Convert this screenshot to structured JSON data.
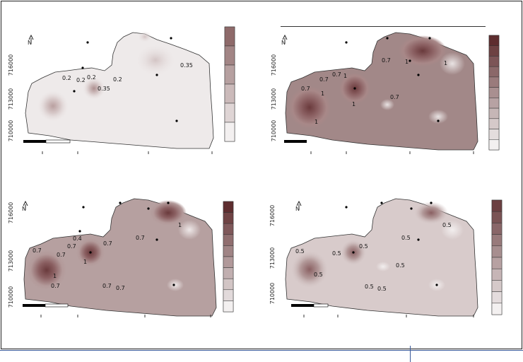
{
  "figure": {
    "panels": [
      {
        "id": "A",
        "northing_ticks": [
          "716000",
          "713000",
          "710000"
        ],
        "contour_labels": [
          "0.2",
          "0.2",
          "0.2",
          "0.35",
          "0.2",
          "0.35"
        ],
        "color_bins": 6,
        "colors": {
          "low": "#f3f0f0",
          "high": "#8e6a6a"
        }
      },
      {
        "id": "B",
        "northing_ticks": [
          "716000",
          "713000",
          "710000"
        ],
        "contour_labels": [
          "0.7",
          "1",
          "1",
          "0.7",
          "0.7",
          "1",
          "1",
          "0.7",
          "0.7",
          "1",
          "1"
        ],
        "color_bins": 11,
        "colors": {
          "low": "#f3f0f0",
          "high": "#5e2d2f"
        }
      },
      {
        "id": "C",
        "northing_ticks": [
          "716000",
          "713000",
          "710000"
        ],
        "contour_labels": [
          "0.7",
          "0.4",
          "0.7",
          "1",
          "0.7",
          "0.7",
          "0.7",
          "1",
          "0.7",
          "0.7",
          "0.7",
          "1"
        ],
        "color_bins": 10,
        "colors": {
          "low": "#f3f0f0",
          "high": "#5e2d2f"
        }
      },
      {
        "id": "D",
        "northing_ticks": [
          "716000",
          "713000",
          "710000"
        ],
        "contour_labels": [
          "0.5",
          "0.5",
          "0.5",
          "0.5",
          "0.5",
          "0.5",
          "0.5",
          "0.5",
          "0.5"
        ],
        "color_bins": 10,
        "colors": {
          "low": "#f3f0f0",
          "high": "#6b3f41"
        }
      }
    ]
  }
}
